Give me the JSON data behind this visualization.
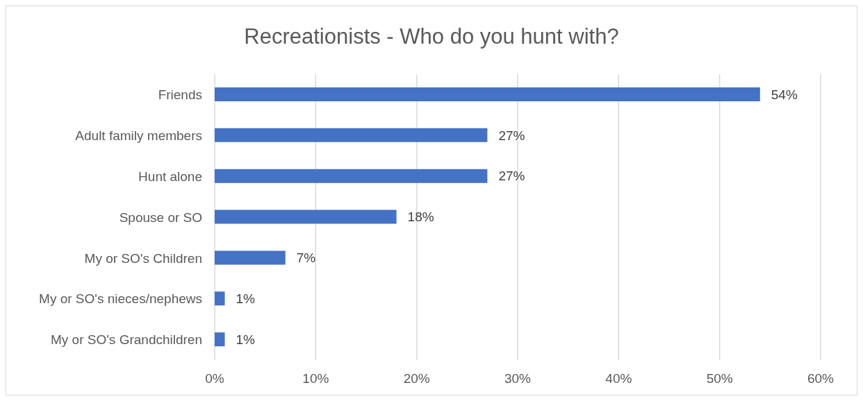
{
  "chart_data": {
    "type": "bar",
    "orientation": "horizontal",
    "title": "Recreationists - Who do you hunt with?",
    "categories": [
      "Friends",
      "Adult family members",
      "Hunt alone",
      "Spouse or SO",
      "My or SO's Children",
      "My or SO's nieces/nephews",
      "My or SO's Grandchildren"
    ],
    "values": [
      54,
      27,
      27,
      18,
      7,
      1,
      1
    ],
    "value_labels": [
      "54%",
      "27%",
      "27%",
      "18%",
      "7%",
      "1%",
      "1%"
    ],
    "color": "#4472c4",
    "xlim": [
      0,
      60
    ],
    "xticks": [
      {
        "value": 0,
        "label": "0%"
      },
      {
        "value": 10,
        "label": "10%"
      },
      {
        "value": 20,
        "label": "20%"
      },
      {
        "value": 30,
        "label": "30%"
      },
      {
        "value": 40,
        "label": "40%"
      },
      {
        "value": 50,
        "label": "50%"
      },
      {
        "value": 60,
        "label": "60%"
      }
    ],
    "grid": "x"
  }
}
